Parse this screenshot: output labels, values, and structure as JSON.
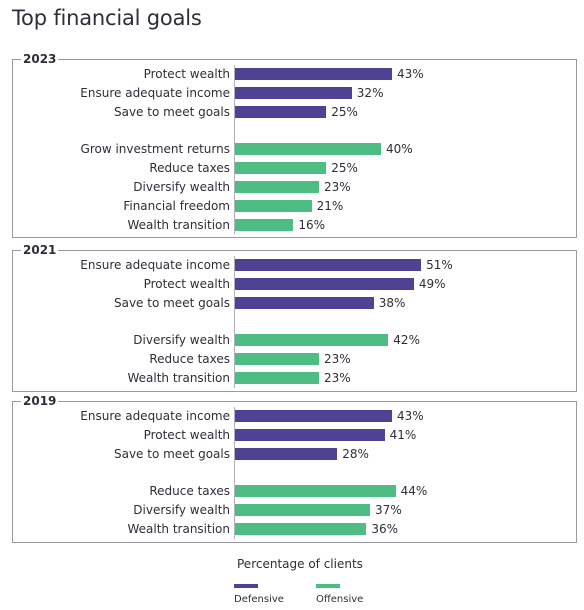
{
  "title": "Top financial goals",
  "colors": {
    "defensive": "#4f4293",
    "offensive": "#4ebd83"
  },
  "legend": {
    "title": "Percentage of clients",
    "items": [
      {
        "label": "Defensive",
        "color": "#4f4293"
      },
      {
        "label": "Offensive",
        "color": "#4ebd83"
      }
    ]
  },
  "chart_data": {
    "type": "bar",
    "orientation": "horizontal",
    "title": "Top financial goals",
    "xlabel": "Percentage of clients",
    "unit": "%",
    "panels": [
      {
        "year": "2023",
        "bars": [
          {
            "label": "Protect wealth",
            "value": 43,
            "group": "Defensive"
          },
          {
            "label": "Ensure adequate income",
            "value": 32,
            "group": "Defensive"
          },
          {
            "label": "Save to meet goals",
            "value": 25,
            "group": "Defensive"
          },
          {
            "label": "Grow investment returns",
            "value": 40,
            "group": "Offensive"
          },
          {
            "label": "Reduce taxes",
            "value": 25,
            "group": "Offensive"
          },
          {
            "label": "Diversify wealth",
            "value": 23,
            "group": "Offensive"
          },
          {
            "label": "Financial freedom",
            "value": 21,
            "group": "Offensive"
          },
          {
            "label": "Wealth transition",
            "value": 16,
            "group": "Offensive"
          }
        ]
      },
      {
        "year": "2021",
        "bars": [
          {
            "label": "Ensure adequate income",
            "value": 51,
            "group": "Defensive"
          },
          {
            "label": "Protect wealth",
            "value": 49,
            "group": "Defensive"
          },
          {
            "label": "Save to meet goals",
            "value": 38,
            "group": "Defensive"
          },
          {
            "label": "Diversify wealth",
            "value": 42,
            "group": "Offensive"
          },
          {
            "label": "Reduce taxes",
            "value": 23,
            "group": "Offensive"
          },
          {
            "label": "Wealth transition",
            "value": 23,
            "group": "Offensive"
          }
        ]
      },
      {
        "year": "2019",
        "bars": [
          {
            "label": "Ensure adequate income",
            "value": 43,
            "group": "Defensive"
          },
          {
            "label": "Protect wealth",
            "value": 41,
            "group": "Defensive"
          },
          {
            "label": "Save to meet goals",
            "value": 28,
            "group": "Defensive"
          },
          {
            "label": "Reduce taxes",
            "value": 44,
            "group": "Offensive"
          },
          {
            "label": "Diversify wealth",
            "value": 37,
            "group": "Offensive"
          },
          {
            "label": "Wealth transition",
            "value": 36,
            "group": "Offensive"
          }
        ]
      }
    ]
  }
}
